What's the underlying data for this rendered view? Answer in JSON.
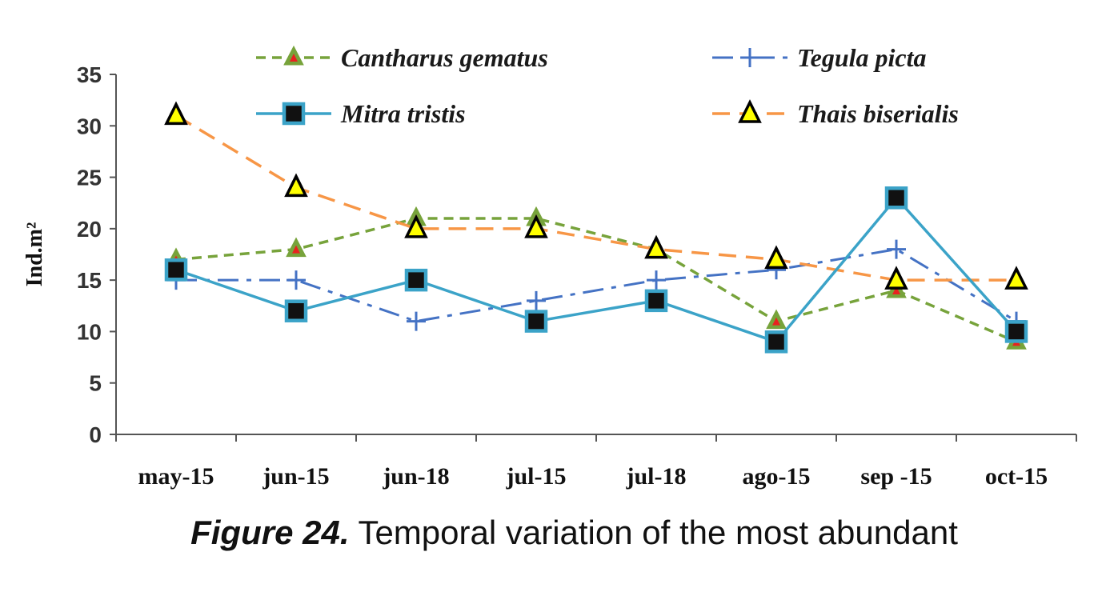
{
  "chart_data": {
    "type": "line",
    "title": "",
    "xlabel": "",
    "ylabel": "Ind.m²",
    "ylim": [
      0,
      35
    ],
    "yticks": [
      0,
      5,
      10,
      15,
      20,
      25,
      30,
      35
    ],
    "categories": [
      "may-15",
      "jun-15",
      "jun-18",
      "jul-15",
      "jul-18",
      "ago-15",
      "sep -15",
      "oct-15"
    ],
    "legend": "top",
    "series": [
      {
        "name": "Cantharus gematus",
        "values": [
          17,
          18,
          21,
          21,
          18,
          11,
          14,
          9
        ],
        "color": "#77A33B",
        "marker_color": "#E8221F",
        "style": "dashed-triangle"
      },
      {
        "name": "Tegula picta",
        "values": [
          15,
          15,
          11,
          13,
          15,
          16,
          18,
          11
        ],
        "color": "#4472C4",
        "style": "dashdot-plus"
      },
      {
        "name": "Mitra tristis",
        "values": [
          16,
          12,
          15,
          11,
          13,
          9,
          23,
          10
        ],
        "color": "#3BA3C8",
        "style": "solid-square"
      },
      {
        "name": "Thais biserialis",
        "values": [
          31,
          24,
          20,
          20,
          18,
          17,
          15,
          15
        ],
        "color": "#F79646",
        "marker_color": "#FFFF00",
        "style": "dashed-triangle"
      }
    ]
  },
  "caption": {
    "label": "Figure 24.",
    "text": "Temporal variation of the most abundant"
  }
}
